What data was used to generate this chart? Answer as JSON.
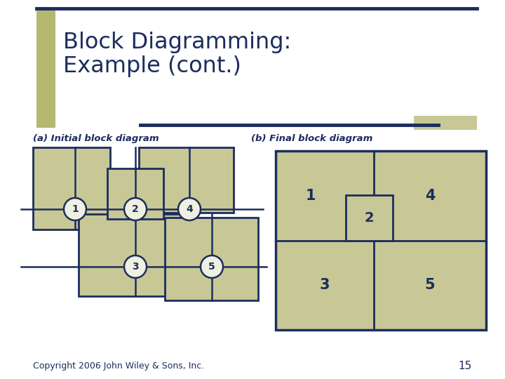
{
  "title_line1": "Block Diagramming:",
  "title_line2": "Example (cont.)",
  "title_color": "#1c2d5e",
  "bg_color": "#ffffff",
  "block_fill": "#c8c896",
  "block_edge": "#1c2d5e",
  "node_fill": "#f0f0e0",
  "label_a": "(a) Initial block diagram",
  "label_b": "(b) Final block diagram",
  "copyright": "Copyright 2006 John Wiley & Sons, Inc.",
  "page_num": "15",
  "title_bar_color": "#b5b870",
  "header_line_color": "#1c2d5e",
  "tan_bar_color": "#c8c896"
}
